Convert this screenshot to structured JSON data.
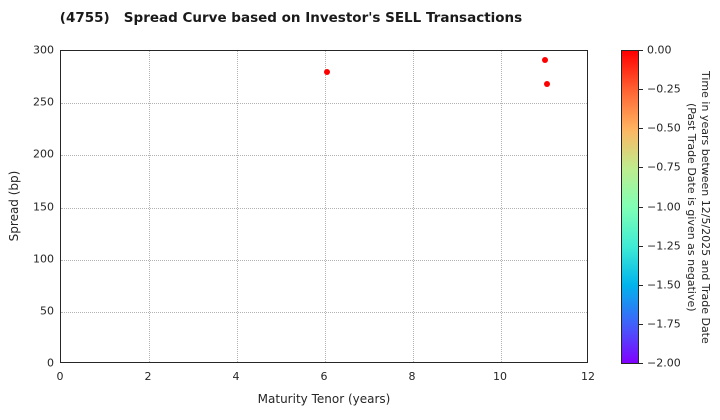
{
  "chart_data": {
    "type": "scatter",
    "title": "(4755)   Spread Curve based on Investor's SELL Transactions",
    "xlabel": "Maturity Tenor (years)",
    "ylabel": "Spread (bp)",
    "xlim": [
      0,
      12
    ],
    "ylim": [
      0,
      300
    ],
    "xticks": [
      0,
      2,
      4,
      6,
      8,
      10,
      12
    ],
    "yticks": [
      0,
      50,
      100,
      150,
      200,
      250,
      300
    ],
    "grid": true,
    "grid_style": "dotted",
    "legend_position": "none",
    "points": [
      {
        "maturity_years": 6.05,
        "spread_bp": 280,
        "time_years": 0.0,
        "color": "#ff0000"
      },
      {
        "maturity_years": 11.0,
        "spread_bp": 291,
        "time_years": 0.0,
        "color": "#ff0000"
      },
      {
        "maturity_years": 11.05,
        "spread_bp": 268,
        "time_years": 0.0,
        "color": "#ff0000"
      }
    ],
    "colorbar": {
      "label_line1": "Time in years between 12/5/2025 and Trade Date",
      "label_line2": "(Past Trade Date is given as negative)",
      "tick_labels": [
        "0.00",
        "−0.25",
        "−0.50",
        "−0.75",
        "−1.00",
        "−1.25",
        "−1.50",
        "−1.75",
        "−2.00"
      ],
      "vmax": 0.0,
      "vmin": -2.0,
      "colormap": "rainbow",
      "gradient_stops_top_to_bottom": [
        "#ff0000",
        "#ff6232",
        "#ffb461",
        "#bfec8e",
        "#80ffb4",
        "#40ecd4",
        "#00b4ec",
        "#4061fa",
        "#8000ff"
      ]
    }
  }
}
